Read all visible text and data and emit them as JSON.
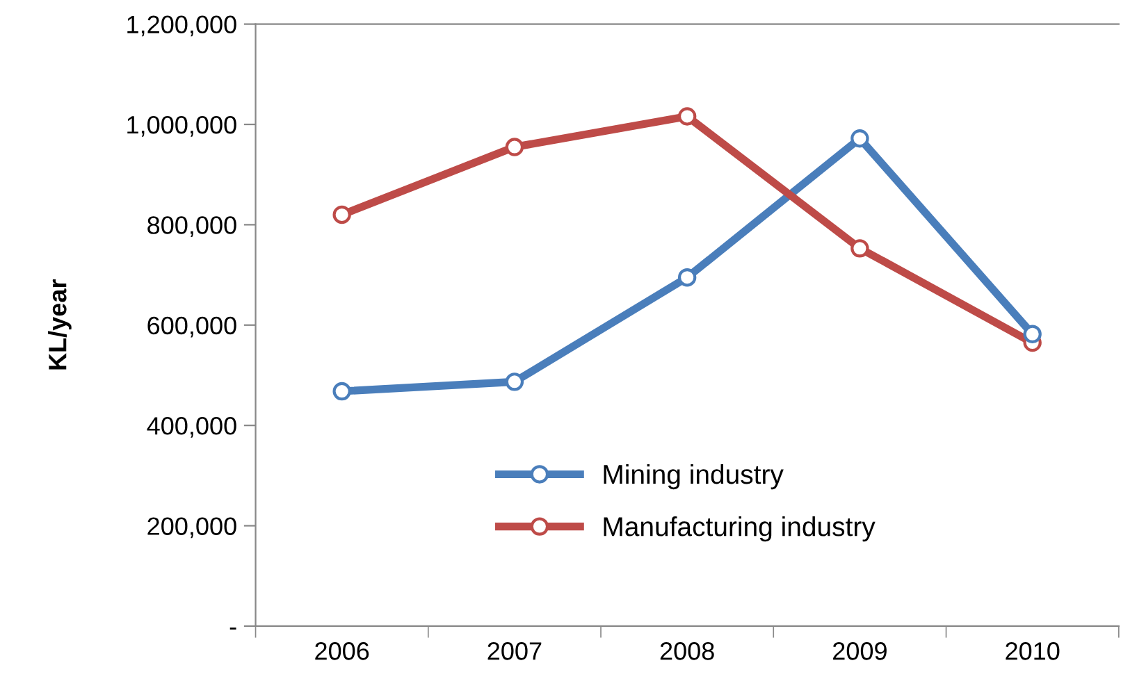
{
  "chart_data": {
    "type": "line",
    "ylabel": "KL/year",
    "categories": [
      "2006",
      "2007",
      "2008",
      "2009",
      "2010"
    ],
    "series": [
      {
        "name": "Mining industry",
        "color": "#4a7ebb",
        "values": [
          468000,
          487000,
          695000,
          972000,
          582000
        ]
      },
      {
        "name": "Manufacturing industry",
        "color": "#be4b48",
        "values": [
          820000,
          955000,
          1016000,
          753000,
          565000
        ]
      }
    ],
    "ylim": [
      0,
      1200000
    ],
    "yticks": [
      {
        "value": 0,
        "label": "-"
      },
      {
        "value": 200000,
        "label": "200,000"
      },
      {
        "value": 400000,
        "label": "400,000"
      },
      {
        "value": 600000,
        "label": "600,000"
      },
      {
        "value": 800000,
        "label": "800,000"
      },
      {
        "value": 1000000,
        "label": "1,000,000"
      },
      {
        "value": 1200000,
        "label": "1,200,000"
      }
    ],
    "grid": false,
    "legend": "bottom",
    "marker": "circle",
    "line_style": "solid"
  }
}
